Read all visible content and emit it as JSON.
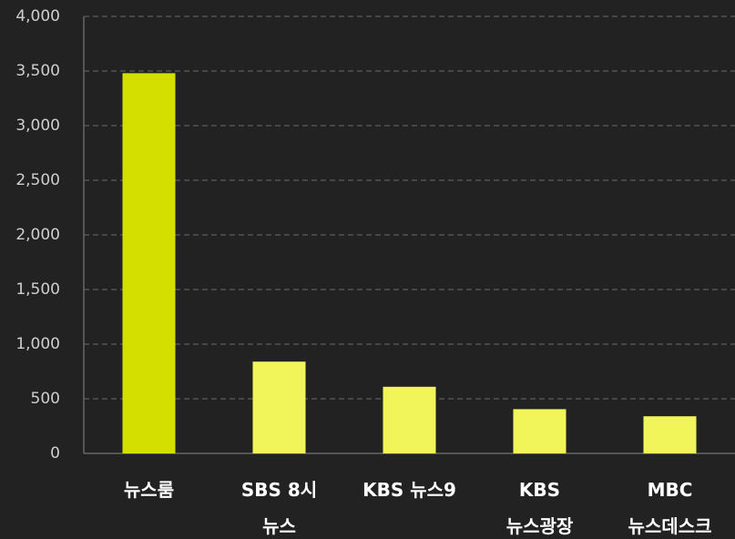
{
  "chart_data": {
    "type": "bar",
    "categories": [
      "뉴스룸",
      "SBS 8시\n뉴스",
      "KBS 뉴스9",
      "KBS\n뉴스광장",
      "MBC\n뉴스데스크"
    ],
    "values": [
      3480,
      840,
      610,
      405,
      340
    ],
    "colors": [
      "#d4df00",
      "#f2f55a",
      "#f2f55a",
      "#f2f55a",
      "#f2f55a"
    ],
    "ylim": [
      0,
      4000
    ],
    "yticks": [
      0,
      500,
      {
        "value": 1000,
        "label": "1,000"
      },
      {
        "value": 1500,
        "label": "1,500"
      },
      {
        "value": 2000,
        "label": "2,000"
      },
      {
        "value": 2500,
        "label": "2,500"
      },
      {
        "value": 3000,
        "label": "3,000"
      },
      {
        "value": 3500,
        "label": "3,500"
      },
      {
        "value": 4000,
        "label": "4,000"
      }
    ],
    "grid": true
  }
}
